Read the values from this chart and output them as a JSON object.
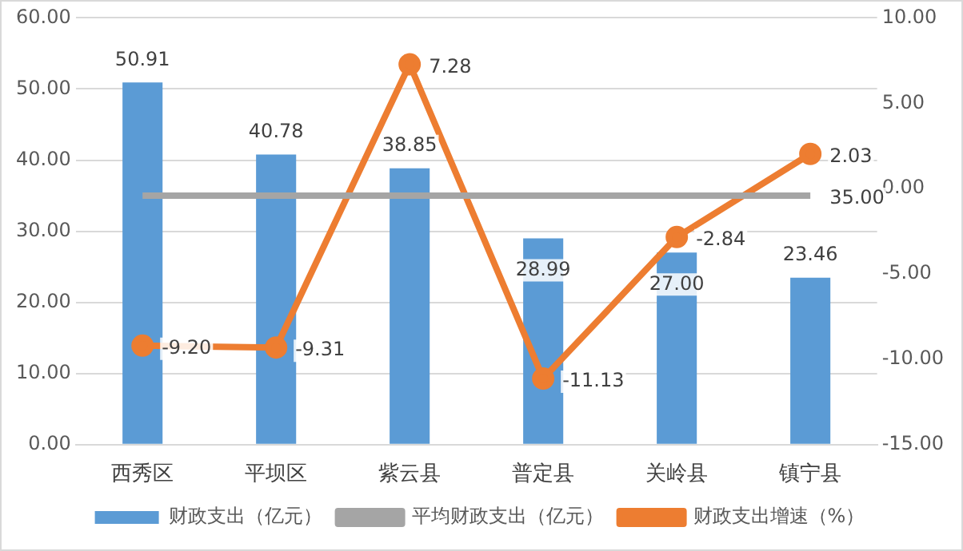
{
  "chart_data": {
    "type": "bar",
    "categories": [
      "西秀区",
      "平坝区",
      "紫云县",
      "普定县",
      "关岭县",
      "镇宁县"
    ],
    "series": [
      {
        "name": "财政支出（亿元）",
        "color": "#5b9bd5",
        "values": [
          50.91,
          40.78,
          38.85,
          28.99,
          27.0,
          23.46
        ],
        "value_labels": [
          "50.91",
          "40.78",
          "38.85",
          "28.99",
          "27.00",
          "23.46"
        ]
      },
      {
        "name": "平均财政支出（亿元）",
        "type": "line",
        "color": "#a5a5a5",
        "marker": "none",
        "values": [
          35.0,
          35.0,
          35.0,
          35.0,
          35.0,
          35.0
        ],
        "value_labels": [
          null,
          null,
          null,
          null,
          null,
          "35.00"
        ]
      },
      {
        "name": "财政支出增速（%）",
        "type": "line",
        "axis": "y2",
        "color": "#ed7d31",
        "marker": "circle",
        "values": [
          -9.2,
          -9.31,
          7.28,
          -11.13,
          -2.84,
          2.03
        ],
        "value_labels": [
          "-9.20",
          "-9.31",
          "7.28",
          "-11.13",
          "-2.84",
          "2.03"
        ]
      }
    ],
    "ylim": [
      0,
      60
    ],
    "yticks": [
      {
        "value": 0,
        "label": "0.00"
      },
      {
        "value": 10,
        "label": "10.00"
      },
      {
        "value": 20,
        "label": "20.00"
      },
      {
        "value": 30,
        "label": "30.00"
      },
      {
        "value": 40,
        "label": "40.00"
      },
      {
        "value": 50,
        "label": "50.00"
      },
      {
        "value": 60,
        "label": "60.00"
      }
    ],
    "y2lim": [
      -15,
      10
    ],
    "y2ticks": [
      {
        "value": -15,
        "label": "-15.00"
      },
      {
        "value": -10,
        "label": "-10.00"
      },
      {
        "value": -5,
        "label": "-5.00"
      },
      {
        "value": 0,
        "label": "0.00"
      },
      {
        "value": 5,
        "label": "5.00"
      },
      {
        "value": 10,
        "label": "10.00"
      }
    ],
    "grid": "y",
    "legend": "bottom"
  }
}
